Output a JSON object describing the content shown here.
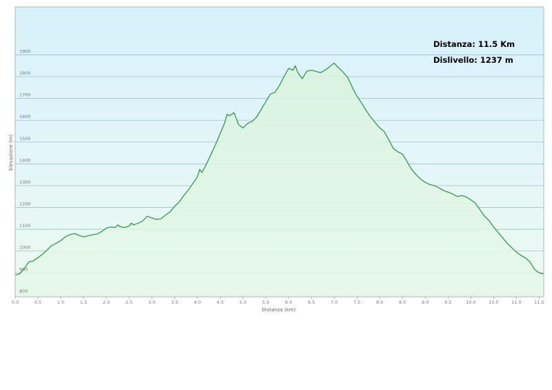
{
  "chart_data": {
    "type": "area",
    "xlabel": "Distanza  (km)",
    "ylabel": "Elevazione (m)",
    "xlim": [
      0,
      11.6
    ],
    "ylim": [
      790,
      2120
    ],
    "x_ticks": [
      "0.0",
      "0.5",
      "1.0",
      "1.5",
      "2.0",
      "2.5",
      "3.0",
      "3.5",
      "4.0",
      "4.5",
      "5.0",
      "5.5",
      "6.0",
      "6.5",
      "7.0",
      "7.5",
      "8.0",
      "8.5",
      "9.0",
      "9.5",
      "10.0",
      "10.5",
      "11.0",
      "11.5"
    ],
    "y_ticks": [
      "800",
      "900",
      "1000",
      "1100",
      "1200",
      "1300",
      "1400",
      "1500",
      "1600",
      "1700",
      "1800",
      "1900"
    ],
    "annotations": [
      "Distanza: 11.5 Km",
      "Dislivello: 1237 m"
    ],
    "grid": true,
    "series": [
      {
        "color": "#2f9a4a",
        "x": [
          0.0,
          0.1,
          0.2,
          0.3,
          0.4,
          0.5,
          0.6,
          0.7,
          0.8,
          0.9,
          1.0,
          1.1,
          1.2,
          1.3,
          1.4,
          1.5,
          1.6,
          1.7,
          1.8,
          1.9,
          2.0,
          2.1,
          2.2,
          2.25,
          2.3,
          2.4,
          2.5,
          2.55,
          2.6,
          2.7,
          2.8,
          2.9,
          3.0,
          3.1,
          3.2,
          3.3,
          3.4,
          3.5,
          3.6,
          3.7,
          3.8,
          3.9,
          4.0,
          4.05,
          4.1,
          4.2,
          4.3,
          4.4,
          4.5,
          4.6,
          4.65,
          4.7,
          4.8,
          4.85,
          4.9,
          5.0,
          5.05,
          5.1,
          5.2,
          5.3,
          5.4,
          5.5,
          5.6,
          5.7,
          5.8,
          5.9,
          6.0,
          6.1,
          6.15,
          6.2,
          6.3,
          6.4,
          6.5,
          6.6,
          6.7,
          6.8,
          6.9,
          7.0,
          7.1,
          7.2,
          7.3,
          7.4,
          7.5,
          7.6,
          7.7,
          7.8,
          7.9,
          8.0,
          8.1,
          8.2,
          8.3,
          8.4,
          8.5,
          8.6,
          8.7,
          8.8,
          8.9,
          9.0,
          9.1,
          9.2,
          9.3,
          9.4,
          9.5,
          9.6,
          9.7,
          9.8,
          9.9,
          10.0,
          10.1,
          10.2,
          10.3,
          10.4,
          10.5,
          10.6,
          10.7,
          10.8,
          10.9,
          11.0,
          11.1,
          11.2,
          11.3,
          11.4,
          11.5,
          11.6
        ],
        "y": [
          890,
          895,
          920,
          950,
          955,
          970,
          985,
          1005,
          1025,
          1035,
          1048,
          1065,
          1075,
          1080,
          1072,
          1065,
          1070,
          1075,
          1078,
          1090,
          1105,
          1110,
          1108,
          1120,
          1112,
          1108,
          1115,
          1128,
          1120,
          1128,
          1138,
          1160,
          1152,
          1145,
          1148,
          1165,
          1180,
          1205,
          1225,
          1255,
          1280,
          1310,
          1340,
          1375,
          1360,
          1400,
          1445,
          1490,
          1540,
          1590,
          1628,
          1620,
          1635,
          1610,
          1580,
          1565,
          1575,
          1585,
          1595,
          1615,
          1650,
          1685,
          1720,
          1728,
          1760,
          1800,
          1838,
          1830,
          1850,
          1820,
          1790,
          1825,
          1830,
          1825,
          1818,
          1830,
          1845,
          1862,
          1840,
          1820,
          1795,
          1750,
          1710,
          1680,
          1645,
          1615,
          1590,
          1565,
          1548,
          1510,
          1470,
          1455,
          1445,
          1410,
          1375,
          1350,
          1330,
          1315,
          1305,
          1300,
          1290,
          1278,
          1270,
          1262,
          1250,
          1255,
          1248,
          1235,
          1220,
          1190,
          1160,
          1140,
          1110,
          1085,
          1060,
          1035,
          1015,
          995,
          980,
          968,
          950,
          915,
          900,
          895
        ]
      }
    ]
  }
}
